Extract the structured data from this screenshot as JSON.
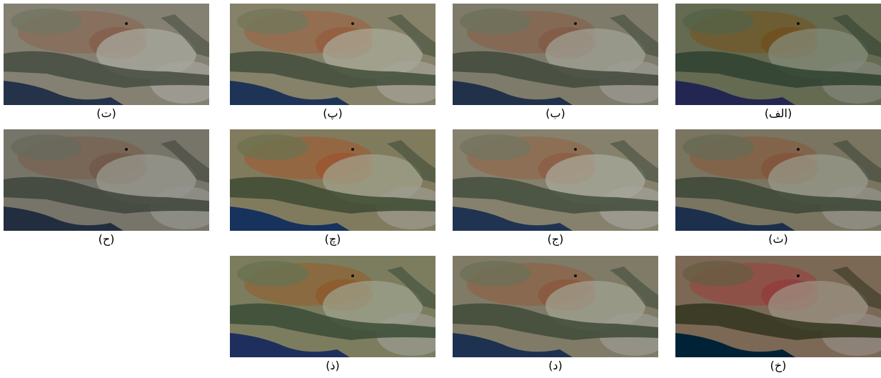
{
  "panels": [
    {
      "label": "(الف)"
    },
    {
      "label": "(ب)"
    },
    {
      "label": "(پ)"
    },
    {
      "label": "(ت)"
    },
    {
      "label": "(ث)"
    },
    {
      "label": "(ج)"
    },
    {
      "label": "(چ)"
    },
    {
      "label": "(ح)"
    },
    {
      "label": "(خ)"
    },
    {
      "label": "(د)"
    },
    {
      "label": "(ذ)"
    }
  ]
}
